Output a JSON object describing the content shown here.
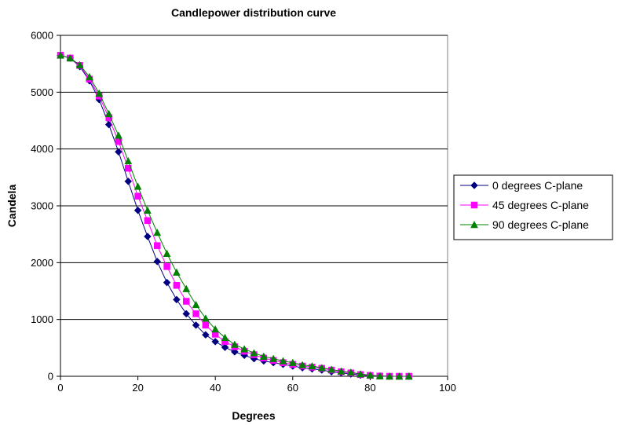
{
  "chart_data": {
    "type": "line",
    "title": "Candlepower distribution curve",
    "xlabel": "Degrees",
    "ylabel": "Candela",
    "xlim": [
      0,
      100
    ],
    "ylim": [
      0,
      6000
    ],
    "x_ticks": [
      "0",
      "20",
      "40",
      "60",
      "80",
      "100"
    ],
    "y_ticks": [
      "0",
      "1000",
      "2000",
      "3000",
      "4000",
      "5000",
      "6000"
    ],
    "grid": "horizontal",
    "legend_position": "right",
    "x": [
      0,
      2.5,
      5,
      7.5,
      10,
      12.5,
      15,
      17.5,
      20,
      22.5,
      25,
      27.5,
      30,
      32.5,
      35,
      37.5,
      40,
      42.5,
      45,
      47.5,
      50,
      52.5,
      55,
      57.5,
      60,
      62.5,
      65,
      67.5,
      70,
      72.5,
      75,
      77.5,
      80,
      82.5,
      85,
      87.5,
      90
    ],
    "series": [
      {
        "name": "0 degrees C-plane",
        "color": "#000080",
        "marker": "diamond",
        "values": [
          5650,
          5600,
          5450,
          5200,
          4870,
          4430,
          3950,
          3430,
          2920,
          2460,
          2020,
          1650,
          1350,
          1100,
          900,
          730,
          610,
          510,
          430,
          370,
          310,
          270,
          240,
          210,
          180,
          150,
          130,
          110,
          80,
          60,
          40,
          20,
          10,
          5,
          0,
          0,
          0
        ]
      },
      {
        "name": "45 degrees C-plane",
        "color": "#ff00ff",
        "marker": "square",
        "values": [
          5650,
          5600,
          5470,
          5230,
          4930,
          4550,
          4130,
          3660,
          3170,
          2740,
          2300,
          1930,
          1600,
          1320,
          1100,
          900,
          740,
          610,
          520,
          440,
          380,
          320,
          280,
          240,
          210,
          180,
          160,
          140,
          110,
          80,
          60,
          30,
          15,
          5,
          0,
          0,
          0
        ]
      },
      {
        "name": "90 degrees C-plane",
        "color": "#008000",
        "marker": "triangle",
        "values": [
          5650,
          5600,
          5480,
          5270,
          4980,
          4620,
          4240,
          3790,
          3340,
          2920,
          2530,
          2160,
          1830,
          1540,
          1260,
          1020,
          830,
          680,
          560,
          480,
          410,
          350,
          310,
          270,
          240,
          200,
          180,
          150,
          120,
          90,
          70,
          40,
          20,
          5,
          0,
          0,
          0
        ]
      }
    ]
  }
}
